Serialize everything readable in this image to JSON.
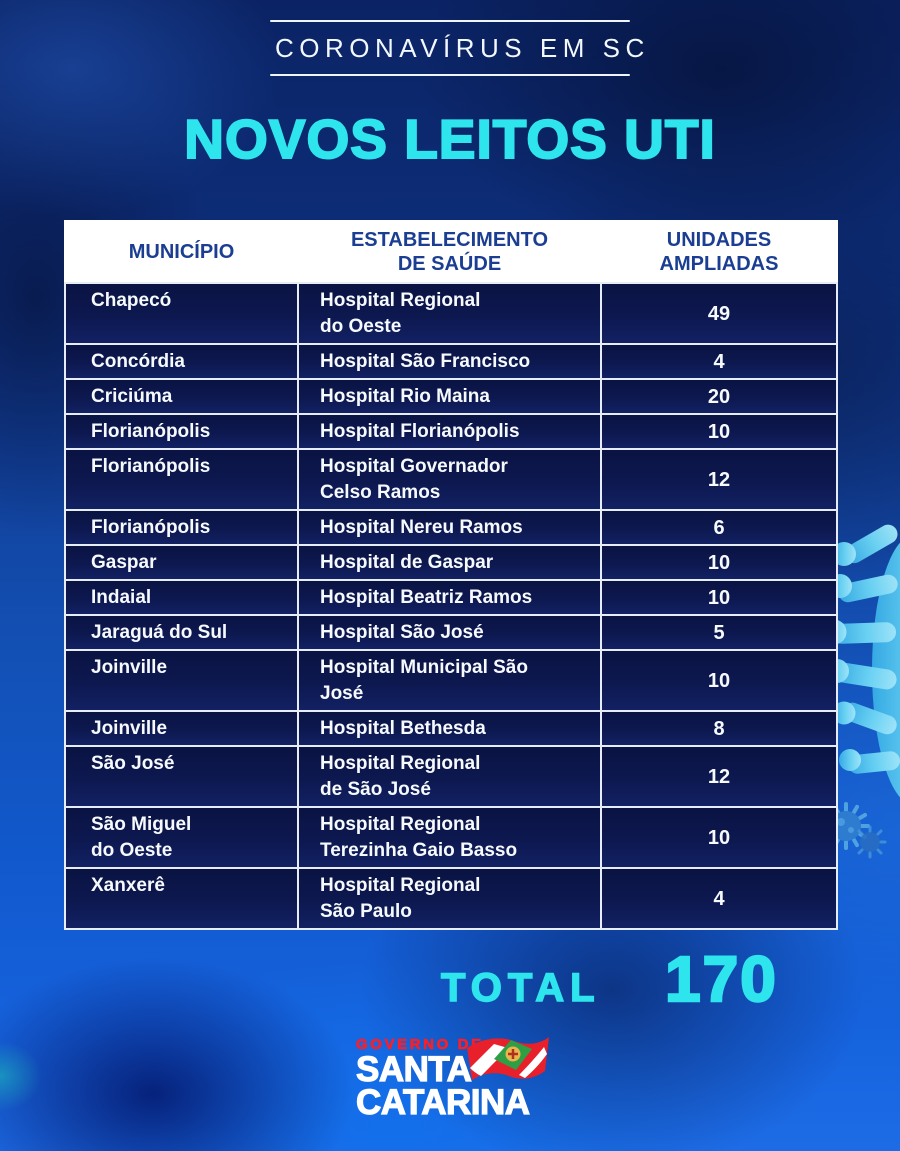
{
  "header": {
    "kicker": "CORONAVÍRUS EM SC",
    "title": "NOVOS LEITOS UTI"
  },
  "table": {
    "columns": [
      {
        "label": "MUNICÍPIO"
      },
      {
        "label": "ESTABELECIMENTO\nDE SAÚDE"
      },
      {
        "label": "UNIDADES\nAMPLIADAS"
      }
    ],
    "rows": [
      {
        "municipio": "Chapecó",
        "estabelecimento": "Hospital Regional\ndo Oeste",
        "unidades": "49"
      },
      {
        "municipio": "Concórdia",
        "estabelecimento": "Hospital São Francisco",
        "unidades": "4"
      },
      {
        "municipio": "Criciúma",
        "estabelecimento": "Hospital Rio Maina",
        "unidades": "20"
      },
      {
        "municipio": "Florianópolis",
        "estabelecimento": "Hospital Florianópolis",
        "unidades": "10"
      },
      {
        "municipio": "Florianópolis",
        "estabelecimento": "Hospital Governador\nCelso Ramos",
        "unidades": "12"
      },
      {
        "municipio": "Florianópolis",
        "estabelecimento": "Hospital Nereu Ramos",
        "unidades": "6"
      },
      {
        "municipio": "Gaspar",
        "estabelecimento": "Hospital de Gaspar",
        "unidades": "10"
      },
      {
        "municipio": "Indaial",
        "estabelecimento": "Hospital Beatriz Ramos",
        "unidades": "10"
      },
      {
        "municipio": "Jaraguá do Sul",
        "estabelecimento": "Hospital São José",
        "unidades": "5"
      },
      {
        "municipio": "Joinville",
        "estabelecimento": "Hospital Municipal São\nJosé",
        "unidades": "10"
      },
      {
        "municipio": "Joinville",
        "estabelecimento": "Hospital Bethesda",
        "unidades": "8"
      },
      {
        "municipio": "São José",
        "estabelecimento": "Hospital Regional\nde São José",
        "unidades": "12"
      },
      {
        "municipio": "São Miguel\ndo Oeste",
        "estabelecimento": "Hospital Regional\nTerezinha Gaio Basso",
        "unidades": "10"
      },
      {
        "municipio": "Xanxerê",
        "estabelecimento": "Hospital Regional\nSão Paulo",
        "unidades": "4"
      }
    ]
  },
  "total": {
    "label": "TOTAL",
    "value": "170"
  },
  "logo": {
    "kicker": "GOVERNO DE",
    "name_line1": "SANTA",
    "name_line2": "CATARINA",
    "flag_icon": "santa-catarina-flag-icon"
  },
  "icons": {
    "virus_large": "coronavirus-icon",
    "virus_small": "coronavirus-icon"
  },
  "colors": {
    "accent_cyan": "#2EE5EE",
    "header_text_blue": "#1B3E92",
    "table_border": "#E7EDF6",
    "row_background": "#0C1750",
    "logo_red": "#FF1D24",
    "background_blue": "#1350B4",
    "virus_cyan": "#5CCDF2"
  }
}
